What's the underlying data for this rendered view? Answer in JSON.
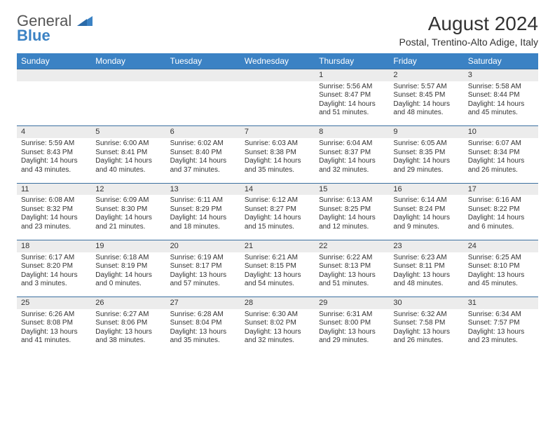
{
  "logo": {
    "text1": "General",
    "text2": "Blue"
  },
  "title": "August 2024",
  "subtitle": "Postal, Trentino-Alto Adige, Italy",
  "colors": {
    "header_bg": "#3b82c4",
    "header_text": "#ffffff",
    "daynum_bg": "#ececec",
    "border": "#3b6fa0",
    "body_text": "#333333",
    "logo_blue": "#3b82c4"
  },
  "typography": {
    "title_fontsize": 28,
    "subtitle_fontsize": 14,
    "dayheader_fontsize": 12,
    "cell_fontsize": 10
  },
  "dayHeaders": [
    "Sunday",
    "Monday",
    "Tuesday",
    "Wednesday",
    "Thursday",
    "Friday",
    "Saturday"
  ],
  "weeks": [
    [
      {
        "n": "",
        "sunrise": "",
        "sunset": "",
        "daylight": ""
      },
      {
        "n": "",
        "sunrise": "",
        "sunset": "",
        "daylight": ""
      },
      {
        "n": "",
        "sunrise": "",
        "sunset": "",
        "daylight": ""
      },
      {
        "n": "",
        "sunrise": "",
        "sunset": "",
        "daylight": ""
      },
      {
        "n": "1",
        "sunrise": "Sunrise: 5:56 AM",
        "sunset": "Sunset: 8:47 PM",
        "daylight": "Daylight: 14 hours and 51 minutes."
      },
      {
        "n": "2",
        "sunrise": "Sunrise: 5:57 AM",
        "sunset": "Sunset: 8:45 PM",
        "daylight": "Daylight: 14 hours and 48 minutes."
      },
      {
        "n": "3",
        "sunrise": "Sunrise: 5:58 AM",
        "sunset": "Sunset: 8:44 PM",
        "daylight": "Daylight: 14 hours and 45 minutes."
      }
    ],
    [
      {
        "n": "4",
        "sunrise": "Sunrise: 5:59 AM",
        "sunset": "Sunset: 8:43 PM",
        "daylight": "Daylight: 14 hours and 43 minutes."
      },
      {
        "n": "5",
        "sunrise": "Sunrise: 6:00 AM",
        "sunset": "Sunset: 8:41 PM",
        "daylight": "Daylight: 14 hours and 40 minutes."
      },
      {
        "n": "6",
        "sunrise": "Sunrise: 6:02 AM",
        "sunset": "Sunset: 8:40 PM",
        "daylight": "Daylight: 14 hours and 37 minutes."
      },
      {
        "n": "7",
        "sunrise": "Sunrise: 6:03 AM",
        "sunset": "Sunset: 8:38 PM",
        "daylight": "Daylight: 14 hours and 35 minutes."
      },
      {
        "n": "8",
        "sunrise": "Sunrise: 6:04 AM",
        "sunset": "Sunset: 8:37 PM",
        "daylight": "Daylight: 14 hours and 32 minutes."
      },
      {
        "n": "9",
        "sunrise": "Sunrise: 6:05 AM",
        "sunset": "Sunset: 8:35 PM",
        "daylight": "Daylight: 14 hours and 29 minutes."
      },
      {
        "n": "10",
        "sunrise": "Sunrise: 6:07 AM",
        "sunset": "Sunset: 8:34 PM",
        "daylight": "Daylight: 14 hours and 26 minutes."
      }
    ],
    [
      {
        "n": "11",
        "sunrise": "Sunrise: 6:08 AM",
        "sunset": "Sunset: 8:32 PM",
        "daylight": "Daylight: 14 hours and 23 minutes."
      },
      {
        "n": "12",
        "sunrise": "Sunrise: 6:09 AM",
        "sunset": "Sunset: 8:30 PM",
        "daylight": "Daylight: 14 hours and 21 minutes."
      },
      {
        "n": "13",
        "sunrise": "Sunrise: 6:11 AM",
        "sunset": "Sunset: 8:29 PM",
        "daylight": "Daylight: 14 hours and 18 minutes."
      },
      {
        "n": "14",
        "sunrise": "Sunrise: 6:12 AM",
        "sunset": "Sunset: 8:27 PM",
        "daylight": "Daylight: 14 hours and 15 minutes."
      },
      {
        "n": "15",
        "sunrise": "Sunrise: 6:13 AM",
        "sunset": "Sunset: 8:25 PM",
        "daylight": "Daylight: 14 hours and 12 minutes."
      },
      {
        "n": "16",
        "sunrise": "Sunrise: 6:14 AM",
        "sunset": "Sunset: 8:24 PM",
        "daylight": "Daylight: 14 hours and 9 minutes."
      },
      {
        "n": "17",
        "sunrise": "Sunrise: 6:16 AM",
        "sunset": "Sunset: 8:22 PM",
        "daylight": "Daylight: 14 hours and 6 minutes."
      }
    ],
    [
      {
        "n": "18",
        "sunrise": "Sunrise: 6:17 AM",
        "sunset": "Sunset: 8:20 PM",
        "daylight": "Daylight: 14 hours and 3 minutes."
      },
      {
        "n": "19",
        "sunrise": "Sunrise: 6:18 AM",
        "sunset": "Sunset: 8:19 PM",
        "daylight": "Daylight: 14 hours and 0 minutes."
      },
      {
        "n": "20",
        "sunrise": "Sunrise: 6:19 AM",
        "sunset": "Sunset: 8:17 PM",
        "daylight": "Daylight: 13 hours and 57 minutes."
      },
      {
        "n": "21",
        "sunrise": "Sunrise: 6:21 AM",
        "sunset": "Sunset: 8:15 PM",
        "daylight": "Daylight: 13 hours and 54 minutes."
      },
      {
        "n": "22",
        "sunrise": "Sunrise: 6:22 AM",
        "sunset": "Sunset: 8:13 PM",
        "daylight": "Daylight: 13 hours and 51 minutes."
      },
      {
        "n": "23",
        "sunrise": "Sunrise: 6:23 AM",
        "sunset": "Sunset: 8:11 PM",
        "daylight": "Daylight: 13 hours and 48 minutes."
      },
      {
        "n": "24",
        "sunrise": "Sunrise: 6:25 AM",
        "sunset": "Sunset: 8:10 PM",
        "daylight": "Daylight: 13 hours and 45 minutes."
      }
    ],
    [
      {
        "n": "25",
        "sunrise": "Sunrise: 6:26 AM",
        "sunset": "Sunset: 8:08 PM",
        "daylight": "Daylight: 13 hours and 41 minutes."
      },
      {
        "n": "26",
        "sunrise": "Sunrise: 6:27 AM",
        "sunset": "Sunset: 8:06 PM",
        "daylight": "Daylight: 13 hours and 38 minutes."
      },
      {
        "n": "27",
        "sunrise": "Sunrise: 6:28 AM",
        "sunset": "Sunset: 8:04 PM",
        "daylight": "Daylight: 13 hours and 35 minutes."
      },
      {
        "n": "28",
        "sunrise": "Sunrise: 6:30 AM",
        "sunset": "Sunset: 8:02 PM",
        "daylight": "Daylight: 13 hours and 32 minutes."
      },
      {
        "n": "29",
        "sunrise": "Sunrise: 6:31 AM",
        "sunset": "Sunset: 8:00 PM",
        "daylight": "Daylight: 13 hours and 29 minutes."
      },
      {
        "n": "30",
        "sunrise": "Sunrise: 6:32 AM",
        "sunset": "Sunset: 7:58 PM",
        "daylight": "Daylight: 13 hours and 26 minutes."
      },
      {
        "n": "31",
        "sunrise": "Sunrise: 6:34 AM",
        "sunset": "Sunset: 7:57 PM",
        "daylight": "Daylight: 13 hours and 23 minutes."
      }
    ]
  ]
}
